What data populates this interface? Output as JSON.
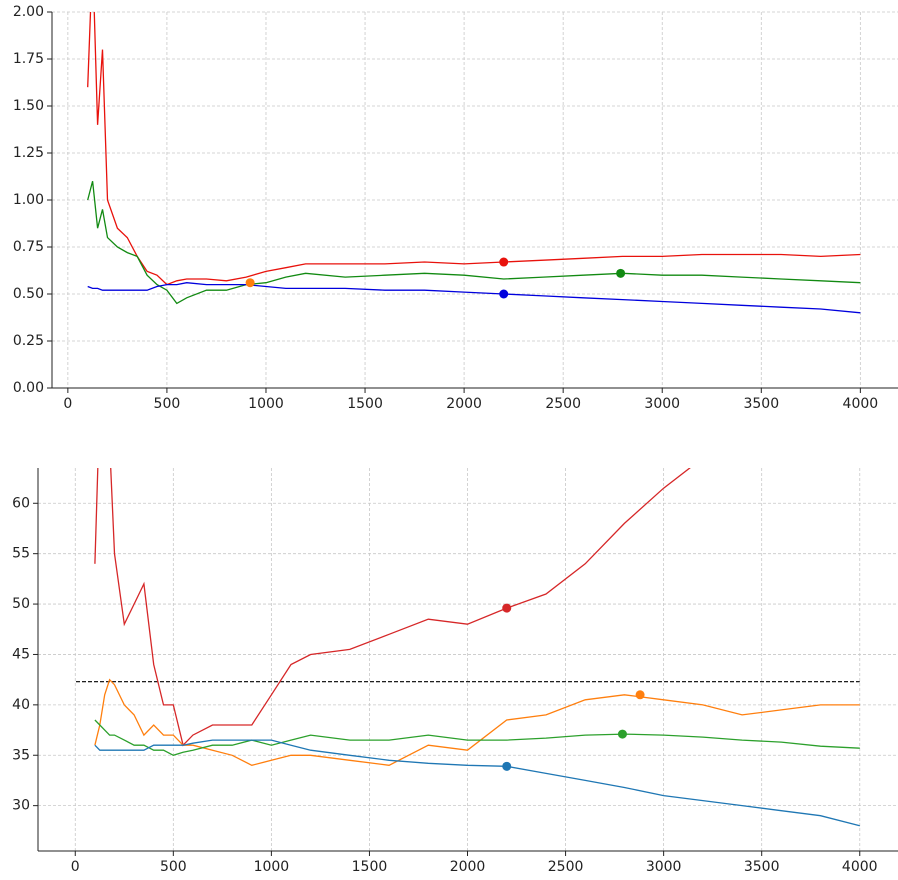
{
  "chart_data": [
    {
      "type": "line",
      "x": [
        100,
        125,
        150,
        175,
        200,
        250,
        300,
        350,
        400,
        450,
        500,
        550,
        600,
        700,
        800,
        900,
        1000,
        1100,
        1200,
        1400,
        1600,
        1800,
        2000,
        2200,
        2400,
        2600,
        2800,
        3000,
        3200,
        3400,
        3600,
        3800,
        4000
      ],
      "series": [
        {
          "color": "#e8120c",
          "values": [
            1.6,
            2.3,
            1.4,
            1.8,
            1.0,
            0.85,
            0.8,
            0.7,
            0.62,
            0.6,
            0.55,
            0.57,
            0.58,
            0.58,
            0.57,
            0.59,
            0.62,
            0.64,
            0.66,
            0.66,
            0.66,
            0.67,
            0.66,
            0.67,
            0.68,
            0.69,
            0.7,
            0.7,
            0.71,
            0.71,
            0.71,
            0.7,
            0.71
          ]
        },
        {
          "color": "#128a12",
          "values": [
            1.0,
            1.1,
            0.85,
            0.95,
            0.8,
            0.75,
            0.72,
            0.7,
            0.6,
            0.55,
            0.52,
            0.45,
            0.48,
            0.52,
            0.52,
            0.55,
            0.56,
            0.59,
            0.61,
            0.59,
            0.6,
            0.61,
            0.6,
            0.58,
            0.59,
            0.6,
            0.61,
            0.6,
            0.6,
            0.59,
            0.58,
            0.57,
            0.56
          ]
        },
        {
          "color": "#0000dd",
          "values": [
            0.54,
            0.53,
            0.53,
            0.52,
            0.52,
            0.52,
            0.52,
            0.52,
            0.52,
            0.54,
            0.55,
            0.55,
            0.56,
            0.55,
            0.55,
            0.55,
            0.54,
            0.53,
            0.53,
            0.53,
            0.52,
            0.52,
            0.51,
            0.5,
            0.49,
            0.48,
            0.47,
            0.46,
            0.45,
            0.44,
            0.43,
            0.42,
            0.4
          ]
        }
      ],
      "markers": [
        {
          "x": 2200,
          "y": 0.67,
          "color": "#e8120c"
        },
        {
          "x": 2200,
          "y": 0.5,
          "color": "#0000dd"
        },
        {
          "x": 2790,
          "y": 0.61,
          "color": "#128a12"
        },
        {
          "x": 920,
          "y": 0.56,
          "color": "#ff7f0e"
        }
      ],
      "xlim": [
        -80,
        4190
      ],
      "ylim": [
        0,
        2
      ],
      "xticks": [
        0,
        500,
        1000,
        1500,
        2000,
        2500,
        3000,
        3500,
        4000
      ],
      "yticks": [
        {
          "value": 0,
          "label": "0.00"
        },
        {
          "value": 0.25,
          "label": "0.25"
        },
        {
          "value": 0.5,
          "label": "0.50"
        },
        {
          "value": 0.75,
          "label": "0.75"
        },
        {
          "value": 1,
          "label": "1.00"
        },
        {
          "value": 1.25,
          "label": "1.25"
        },
        {
          "value": 1.5,
          "label": "1.50"
        },
        {
          "value": 1.75,
          "label": "1.75"
        },
        {
          "value": 2,
          "label": "2.00"
        }
      ],
      "grid": true
    },
    {
      "type": "line",
      "x": [
        100,
        125,
        150,
        175,
        200,
        250,
        300,
        350,
        400,
        450,
        500,
        550,
        600,
        700,
        800,
        900,
        1000,
        1100,
        1200,
        1400,
        1600,
        1800,
        2000,
        2200,
        2400,
        2600,
        2800,
        3000,
        3200,
        3400,
        3600,
        3800,
        4000
      ],
      "series": [
        {
          "color": "#d62728",
          "values": [
            54,
            70,
            64,
            66,
            55,
            48,
            50,
            52,
            44,
            40,
            40,
            36,
            37,
            38,
            38,
            38,
            41,
            44,
            45,
            45.5,
            47,
            48.5,
            48,
            49.6,
            51,
            54,
            58,
            61.5,
            64.5,
            null,
            null,
            null,
            null
          ]
        },
        {
          "color": "#ff7f0e",
          "values": [
            36,
            38,
            41,
            42.5,
            42,
            40,
            39,
            37,
            38,
            37,
            37,
            36,
            36,
            35.5,
            35,
            34,
            34.5,
            35,
            35,
            34.5,
            34,
            36,
            35.5,
            38.5,
            39,
            40.5,
            41,
            40.5,
            40,
            39,
            39.5,
            40,
            40
          ]
        },
        {
          "color": "#2ca02c",
          "values": [
            38.5,
            38,
            37.5,
            37,
            37,
            36.5,
            36,
            36,
            35.5,
            35.5,
            35,
            35.3,
            35.5,
            36,
            36,
            36.5,
            36,
            36.5,
            37,
            36.5,
            36.5,
            37,
            36.5,
            36.5,
            36.7,
            37,
            37.1,
            37,
            36.8,
            36.5,
            36.3,
            35.9,
            35.7
          ]
        },
        {
          "color": "#1f77b4",
          "values": [
            36,
            35.5,
            35.5,
            35.5,
            35.5,
            35.5,
            35.5,
            35.5,
            36,
            36,
            36,
            36,
            36.2,
            36.5,
            36.5,
            36.5,
            36.5,
            36,
            35.5,
            35,
            34.5,
            34.2,
            34,
            33.9,
            33.2,
            32.5,
            31.8,
            31,
            30.5,
            30,
            29.5,
            29,
            28
          ]
        }
      ],
      "markers": [
        {
          "x": 2200,
          "y": 49.6,
          "color": "#d62728"
        },
        {
          "x": 2200,
          "y": 33.9,
          "color": "#1f77b4"
        },
        {
          "x": 2790,
          "y": 37.1,
          "color": "#2ca02c"
        },
        {
          "x": 2880,
          "y": 41,
          "color": "#ff7f0e"
        }
      ],
      "hline": 42.3,
      "xlim": [
        -190,
        4195
      ],
      "ylim": [
        25.5,
        63.5
      ],
      "xticks": [
        0,
        500,
        1000,
        1500,
        2000,
        2500,
        3000,
        3500,
        4000
      ],
      "yticks": [
        30,
        35,
        40,
        45,
        50,
        55,
        60
      ],
      "grid": true
    }
  ]
}
